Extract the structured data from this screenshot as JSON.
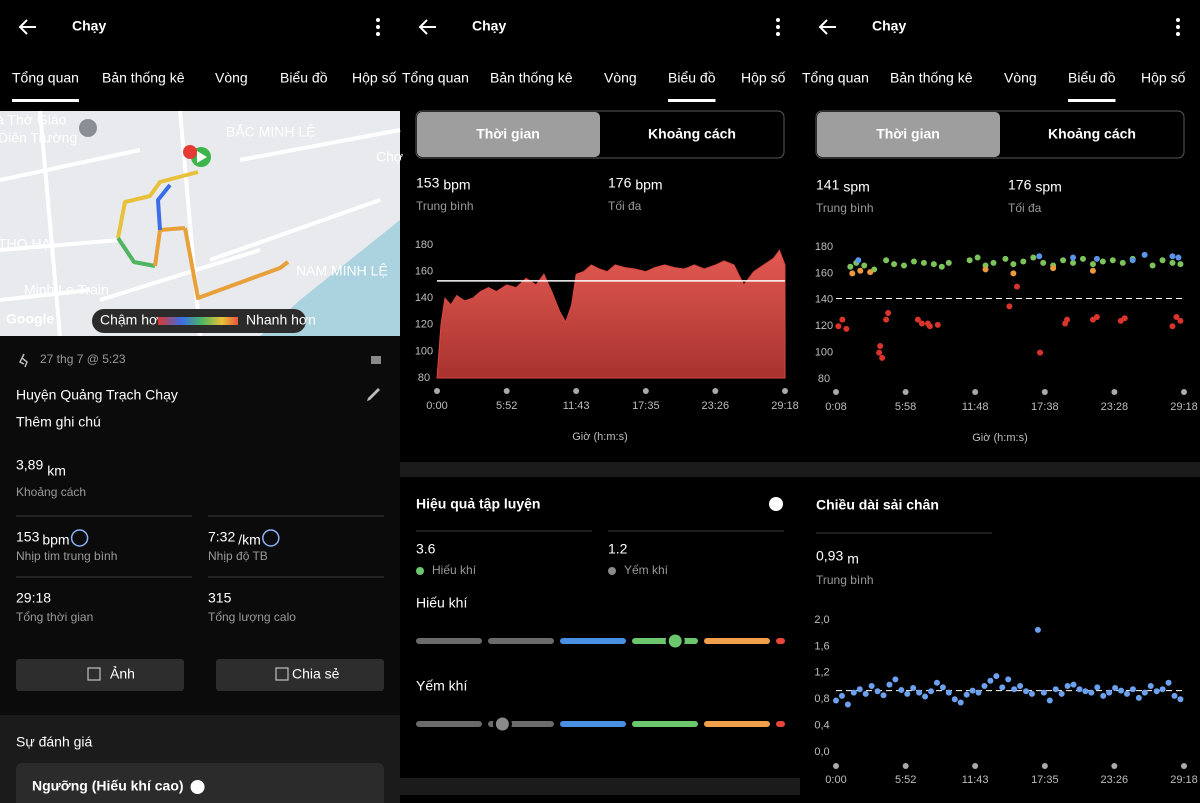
{
  "panels": [
    {
      "header": {
        "title": "Chạy"
      },
      "tabs": [
        "Tổng quan",
        "Bản thống kê",
        "Vòng",
        "Biểu đồ",
        "Hộp số"
      ],
      "active_tab": 0,
      "map": {
        "labels": [
          "à Thờ Giáo",
          "Diên Trường",
          "BẮC MINH LỆ",
          "Chợ",
          "THỌ HẠ",
          "NAM MINH LỆ",
          "Minh Le Train",
          "Google"
        ],
        "legend": {
          "slow": "Chậm hơn",
          "fast": "Nhanh hơn"
        }
      },
      "activity": {
        "date": "27 thg 7 @ 5:23",
        "title": "Huyện Quảng Trạch Chạy",
        "note": "Thêm ghi chú",
        "distance": {
          "value": "3,89",
          "unit": "km",
          "label": "Khoảng cách"
        },
        "stats": [
          {
            "value": "153",
            "unit": "bpm",
            "label": "Nhịp tim trung bình"
          },
          {
            "value": "7:32",
            "unit": "/km",
            "label": "Nhịp độ TB"
          },
          {
            "value": "29:18",
            "label": "Tổng thời gian"
          },
          {
            "value": "315",
            "label": "Tổng lượng calo"
          }
        ]
      },
      "buttons": [
        "Ảnh",
        "Chia sẻ"
      ],
      "section_title": "Sự đánh giá",
      "card_title": "Ngưỡng (Hiếu khí cao)"
    },
    {
      "header": {
        "title": "Chạy"
      },
      "tabs": [
        "Tổng quan",
        "Bản thống kê",
        "Vòng",
        "Biểu đồ",
        "Hộp số"
      ],
      "active_tab": 3,
      "toggle": [
        "Thời gian",
        "Khoảng cách"
      ],
      "summary": [
        {
          "value": 153,
          "unit": "bpm",
          "label": "Trung bình"
        },
        {
          "value": 176,
          "unit": "bpm",
          "label": "Tối đa"
        }
      ],
      "chart": {
        "type": "area",
        "color": "#d9473f",
        "x_label": "Giờ (h:m:s)",
        "x": [
          0,
          20,
          40,
          70,
          100,
          140,
          180,
          220,
          260,
          300,
          352,
          400,
          450,
          500,
          540,
          580,
          620,
          650,
          680,
          703,
          740,
          780,
          820,
          860,
          900,
          950,
          1000,
          1055,
          1100,
          1150,
          1200,
          1250,
          1300,
          1350,
          1407,
          1450,
          1500,
          1550,
          1600,
          1650,
          1700,
          1730,
          1758
        ],
        "values": [
          80,
          120,
          140,
          135,
          142,
          138,
          140,
          145,
          148,
          145,
          150,
          148,
          155,
          150,
          158,
          145,
          130,
          122,
          135,
          158,
          160,
          165,
          162,
          160,
          165,
          163,
          162,
          160,
          163,
          165,
          163,
          162,
          165,
          162,
          165,
          168,
          165,
          150,
          160,
          165,
          170,
          176,
          165
        ],
        "xlim": [
          0,
          1758
        ],
        "ylim": [
          80,
          180
        ],
        "yticks": [
          80,
          100,
          120,
          140,
          160,
          180
        ],
        "xticks": [
          {
            "value": 0,
            "label": "0:00"
          },
          {
            "value": 352,
            "label": "5:52"
          },
          {
            "value": 703,
            "label": "11:43"
          },
          {
            "value": 1055,
            "label": "17:35"
          },
          {
            "value": 1406,
            "label": "23:26"
          },
          {
            "value": 1758,
            "label": "29:18"
          }
        ]
      },
      "training": {
        "title": "Hiệu quả tập luyện",
        "aerobic": {
          "value": 3.6,
          "label": "Hiếu khí",
          "bar_title": "Hiếu khí"
        },
        "anaerobic": {
          "value": 1.2,
          "label": "Yếm khí",
          "bar_title": "Yếm khí"
        }
      }
    },
    {
      "header": {
        "title": "Chạy"
      },
      "tabs": [
        "Tổng quan",
        "Bản thống kê",
        "Vòng",
        "Biểu đồ",
        "Hộp số"
      ],
      "active_tab": 3,
      "toggle": [
        "Thời gian",
        "Khoảng cách"
      ],
      "summary": [
        {
          "value": 141,
          "unit": "spm",
          "label": "Trung bình"
        },
        {
          "value": 176,
          "unit": "spm",
          "label": "Tối đa"
        }
      ],
      "chart": {
        "type": "scatter",
        "x_label": "Giờ (h:m:s)",
        "xlim": [
          8,
          1758
        ],
        "ylim": [
          80,
          180
        ],
        "yticks": [
          80,
          100,
          120,
          140,
          160,
          180
        ],
        "xticks": [
          {
            "value": 8,
            "label": "0:08"
          },
          {
            "value": 358,
            "label": "5:58"
          },
          {
            "value": 708,
            "label": "11:48"
          },
          {
            "value": 1058,
            "label": "17:38"
          },
          {
            "value": 1408,
            "label": "23:28"
          },
          {
            "value": 1758,
            "label": "29:18"
          }
        ],
        "series": [
          {
            "color": "#7cc45a",
            "x": [
              80,
              110,
              150,
              200,
              260,
              300,
              350,
              400,
              450,
              500,
              540,
              575,
              680,
              720,
              760,
              800,
              860,
              900,
              950,
              1000,
              1050,
              1100,
              1150,
              1200,
              1250,
              1300,
              1350,
              1400,
              1450,
              1500,
              1600,
              1650,
              1700,
              1740
            ],
            "values": [
              165,
              168,
              166,
              163,
              170,
              167,
              166,
              169,
              168,
              167,
              165,
              168,
              170,
              172,
              166,
              168,
              171,
              167,
              169,
              172,
              168,
              166,
              170,
              168,
              171,
              167,
              169,
              170,
              168,
              171,
              166,
              170,
              168,
              167
            ]
          },
          {
            "color": "#ec9a3c",
            "x": [
              90,
              130,
              180,
              760,
              900,
              1100,
              1300
            ],
            "values": [
              160,
              162,
              161,
              163,
              160,
              164,
              162
            ]
          },
          {
            "color": "#5b95ea",
            "x": [
              120,
              1030,
              1200,
              1320,
              1500,
              1560,
              1700,
              1730
            ],
            "values": [
              170,
              173,
              172,
              171,
              170,
              174,
              173,
              172
            ]
          },
          {
            "color": "#d9342b",
            "x": [
              20,
              40,
              60,
              225,
              230,
              240,
              260,
              270,
              420,
              440,
              470,
              480,
              520,
              880,
              918,
              1034,
              1160,
              1170,
              1300,
              1320,
              1440,
              1460,
              1700,
              1720,
              1740
            ],
            "values": [
              120,
              125,
              118,
              100,
              105,
              96,
              125,
              130,
              125,
              122,
              122,
              120,
              121,
              135,
              150,
              100,
              122,
              125,
              125,
              127,
              124,
              126,
              120,
              127,
              124
            ]
          }
        ]
      },
      "stride": {
        "title": "Chiều dài sải chân",
        "average": {
          "value": 0.93,
          "label": "0,93"
        },
        "unit": "m",
        "label": "Trung bình",
        "chart": {
          "type": "scatter",
          "color": "#6ba1ef",
          "xlim": [
            0,
            1758
          ],
          "ylim": [
            0,
            2
          ],
          "yticks": [
            {
              "value": 0,
              "label": "0,0"
            },
            {
              "value": 0.4,
              "label": "0,4"
            },
            {
              "value": 0.8,
              "label": "0,8"
            },
            {
              "value": 1.2,
              "label": "1,2"
            },
            {
              "value": 1.6,
              "label": "1,6"
            },
            {
              "value": 2,
              "label": "2,0"
            }
          ],
          "xticks": [
            {
              "value": 0,
              "label": "0:00"
            },
            {
              "value": 352,
              "label": "5:52"
            },
            {
              "value": 703,
              "label": "11:43"
            },
            {
              "value": 1055,
              "label": "17:35"
            },
            {
              "value": 1406,
              "label": "23:26"
            },
            {
              "value": 1758,
              "label": "29:18"
            }
          ],
          "x": [
            0,
            30,
            60,
            90,
            120,
            150,
            180,
            210,
            240,
            270,
            300,
            330,
            360,
            390,
            420,
            450,
            480,
            510,
            540,
            570,
            600,
            630,
            660,
            690,
            720,
            750,
            780,
            810,
            840,
            870,
            900,
            930,
            960,
            990,
            1020,
            1050,
            1080,
            1110,
            1140,
            1170,
            1200,
            1230,
            1260,
            1290,
            1320,
            1350,
            1380,
            1410,
            1440,
            1470,
            1500,
            1530,
            1560,
            1590,
            1620,
            1650,
            1680,
            1710,
            1740
          ],
          "values": [
            0.78,
            0.85,
            0.72,
            0.9,
            0.95,
            0.88,
            1.0,
            0.92,
            0.86,
            1.02,
            1.1,
            0.94,
            0.88,
            0.97,
            0.9,
            0.84,
            0.92,
            1.05,
            0.98,
            0.9,
            0.8,
            0.75,
            0.87,
            0.93,
            0.9,
            1.0,
            1.08,
            1.15,
            0.98,
            1.1,
            0.95,
            1.0,
            0.92,
            0.88,
            1.85,
            0.9,
            0.78,
            0.95,
            0.88,
            1.0,
            1.02,
            0.95,
            0.92,
            0.9,
            0.98,
            0.85,
            0.9,
            0.97,
            0.93,
            0.88,
            0.95,
            0.82,
            0.9,
            1.0,
            0.92,
            0.95,
            1.05,
            0.85,
            0.8
          ]
        }
      }
    }
  ]
}
